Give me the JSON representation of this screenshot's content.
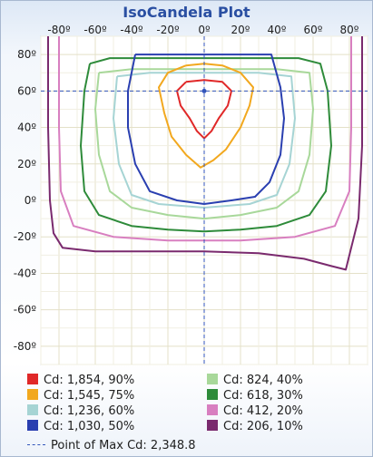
{
  "chart_data": {
    "type": "contour",
    "title": "IsoCandela Plot",
    "xlim": [
      -90,
      90
    ],
    "ylim": [
      -90,
      90
    ],
    "x_ticks": [
      "-80º",
      "-60º",
      "-40º",
      "-20º",
      "0º",
      "20º",
      "40º",
      "60º",
      "80º"
    ],
    "x_tick_values": [
      -80,
      -60,
      -40,
      -20,
      0,
      20,
      40,
      60,
      80
    ],
    "y_ticks": [
      "80º",
      "60º",
      "40º",
      "20º",
      "0º",
      "-20º",
      "-40º",
      "-60º",
      "-80º"
    ],
    "y_tick_values": [
      80,
      60,
      40,
      20,
      0,
      -20,
      -40,
      -60,
      -80
    ],
    "grid": true,
    "max_point": {
      "x": 0,
      "y": 60
    },
    "contours": [
      {
        "label": "Cd: 206, 10%",
        "color": "#7a2a6e",
        "pts": [
          [
            -86,
            90
          ],
          [
            -86,
            40
          ],
          [
            -85,
            0
          ],
          [
            -83,
            -18
          ],
          [
            -78,
            -26
          ],
          [
            -60,
            -28
          ],
          [
            -30,
            -28
          ],
          [
            0,
            -28
          ],
          [
            30,
            -29
          ],
          [
            55,
            -32
          ],
          [
            70,
            -36
          ],
          [
            78,
            -38
          ],
          [
            85,
            -10
          ],
          [
            87,
            30
          ],
          [
            87,
            90
          ]
        ]
      },
      {
        "label": "Cd: 412, 20%",
        "color": "#d87fc0",
        "pts": [
          [
            -80,
            90
          ],
          [
            -80,
            40
          ],
          [
            -79,
            5
          ],
          [
            -72,
            -14
          ],
          [
            -50,
            -20
          ],
          [
            -20,
            -22
          ],
          [
            0,
            -22
          ],
          [
            20,
            -22
          ],
          [
            50,
            -20
          ],
          [
            72,
            -14
          ],
          [
            80,
            5
          ],
          [
            81,
            40
          ],
          [
            81,
            90
          ]
        ]
      },
      {
        "label": "Cd: 618, 30%",
        "color": "#2e8b3a",
        "pts": [
          [
            -63,
            75
          ],
          [
            -66,
            60
          ],
          [
            -68,
            30
          ],
          [
            -66,
            5
          ],
          [
            -58,
            -8
          ],
          [
            -40,
            -14
          ],
          [
            -20,
            -16
          ],
          [
            0,
            -17
          ],
          [
            20,
            -16
          ],
          [
            40,
            -14
          ],
          [
            58,
            -8
          ],
          [
            67,
            5
          ],
          [
            70,
            30
          ],
          [
            68,
            60
          ],
          [
            64,
            75
          ],
          [
            52,
            78
          ],
          [
            30,
            78
          ],
          [
            0,
            78
          ],
          [
            -30,
            78
          ],
          [
            -52,
            78
          ],
          [
            -63,
            75
          ]
        ]
      },
      {
        "label": "Cd: 824, 40%",
        "color": "#a8d89a",
        "pts": [
          [
            -58,
            70
          ],
          [
            -60,
            50
          ],
          [
            -58,
            25
          ],
          [
            -52,
            5
          ],
          [
            -40,
            -4
          ],
          [
            -20,
            -8
          ],
          [
            0,
            -10
          ],
          [
            20,
            -8
          ],
          [
            40,
            -4
          ],
          [
            52,
            5
          ],
          [
            58,
            25
          ],
          [
            60,
            50
          ],
          [
            58,
            70
          ],
          [
            40,
            72
          ],
          [
            0,
            72
          ],
          [
            -40,
            72
          ],
          [
            -58,
            70
          ]
        ]
      },
      {
        "label": "Cd: 1,236, 60%",
        "color": "#a6d4d4",
        "pts": [
          [
            -48,
            68
          ],
          [
            -50,
            45
          ],
          [
            -47,
            20
          ],
          [
            -40,
            3
          ],
          [
            -25,
            -2
          ],
          [
            0,
            -4
          ],
          [
            25,
            -2
          ],
          [
            40,
            3
          ],
          [
            47,
            20
          ],
          [
            50,
            45
          ],
          [
            48,
            68
          ],
          [
            30,
            70
          ],
          [
            0,
            70
          ],
          [
            -30,
            70
          ],
          [
            -48,
            68
          ]
        ]
      },
      {
        "label": "Cd: 1,030, 50%",
        "color": "#2a3fb0",
        "pts": [
          [
            -38,
            80
          ],
          [
            -42,
            60
          ],
          [
            -42,
            40
          ],
          [
            -38,
            20
          ],
          [
            -30,
            5
          ],
          [
            -15,
            0
          ],
          [
            0,
            -2
          ],
          [
            15,
            0
          ],
          [
            28,
            2
          ],
          [
            36,
            10
          ],
          [
            42,
            25
          ],
          [
            44,
            45
          ],
          [
            42,
            62
          ],
          [
            37,
            80
          ],
          [
            20,
            80
          ],
          [
            0,
            80
          ],
          [
            -20,
            80
          ],
          [
            -38,
            80
          ]
        ]
      },
      {
        "label": "Cd: 1,545, 75%",
        "color": "#f2a81e",
        "pts": [
          [
            -10,
            74
          ],
          [
            -20,
            70
          ],
          [
            -25,
            62
          ],
          [
            -22,
            48
          ],
          [
            -18,
            35
          ],
          [
            -10,
            25
          ],
          [
            -2,
            18
          ],
          [
            5,
            22
          ],
          [
            12,
            28
          ],
          [
            20,
            40
          ],
          [
            25,
            52
          ],
          [
            27,
            62
          ],
          [
            20,
            70
          ],
          [
            10,
            74
          ],
          [
            0,
            75
          ],
          [
            -10,
            74
          ]
        ]
      },
      {
        "label": "Cd: 1,854, 90%",
        "color": "#e02828",
        "pts": [
          [
            -10,
            65
          ],
          [
            -15,
            60
          ],
          [
            -13,
            52
          ],
          [
            -8,
            45
          ],
          [
            -4,
            38
          ],
          [
            0,
            34
          ],
          [
            4,
            38
          ],
          [
            8,
            45
          ],
          [
            13,
            52
          ],
          [
            15,
            60
          ],
          [
            10,
            65
          ],
          [
            0,
            66
          ],
          [
            -10,
            65
          ]
        ]
      }
    ],
    "legend": [
      {
        "label": "Cd: 1,854, 90%",
        "color": "#e02828"
      },
      {
        "label": "Cd: 1,545, 75%",
        "color": "#f2a81e"
      },
      {
        "label": "Cd: 1,236, 60%",
        "color": "#a6d4d4"
      },
      {
        "label": "Cd: 1,030, 50%",
        "color": "#2a3fb0"
      },
      {
        "label": "Cd: 824, 40%",
        "color": "#a8d89a"
      },
      {
        "label": "Cd: 618, 30%",
        "color": "#2e8b3a"
      },
      {
        "label": "Cd: 412, 20%",
        "color": "#d87fc0"
      },
      {
        "label": "Cd: 206, 10%",
        "color": "#7a2a6e"
      }
    ],
    "max_label": "Point of Max Cd: 2,348.8",
    "max_color": "#3355bb"
  }
}
